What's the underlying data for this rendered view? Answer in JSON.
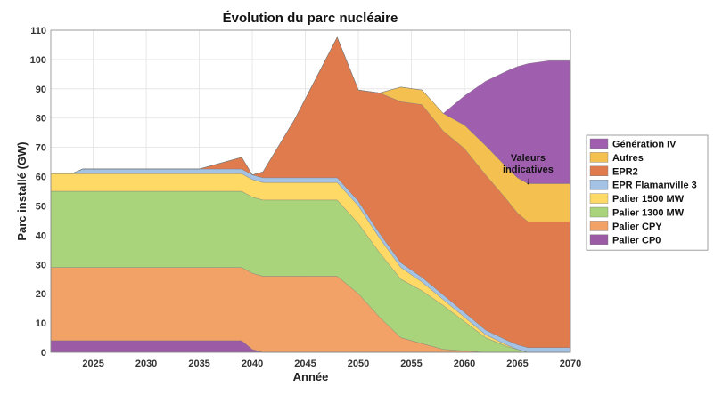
{
  "chart_data": {
    "type": "area",
    "title": "Évolution du parc nucléaire",
    "xlabel": "Année",
    "ylabel": "Parc installé (GW)",
    "xlim": [
      2021,
      2070
    ],
    "ylim": [
      0,
      110
    ],
    "xticks": [
      2025,
      2030,
      2035,
      2040,
      2045,
      2050,
      2055,
      2060,
      2065,
      2070
    ],
    "yticks": [
      0,
      10,
      20,
      30,
      40,
      50,
      60,
      70,
      80,
      90,
      100,
      110
    ],
    "grid": true,
    "legend_position": "right",
    "stacked": true,
    "x": [
      2021,
      2023,
      2024,
      2035,
      2037,
      2039,
      2040,
      2041,
      2044,
      2048,
      2050,
      2052,
      2054,
      2056,
      2058,
      2060,
      2062,
      2064,
      2065,
      2066,
      2068,
      2070
    ],
    "series": [
      {
        "name": "Palier CP0",
        "color": "#9b5ba5",
        "values": [
          4,
          4,
          4,
          4,
          4,
          4,
          1,
          0,
          0,
          0,
          0,
          0,
          0,
          0,
          0,
          0,
          0,
          0,
          0,
          0,
          0,
          0
        ]
      },
      {
        "name": "Palier CPY",
        "color": "#f2a167",
        "values": [
          25,
          25,
          25,
          25,
          25,
          25,
          26,
          26,
          26,
          26,
          20,
          12,
          5,
          3,
          1,
          0.5,
          0,
          0,
          0,
          0,
          0,
          0
        ]
      },
      {
        "name": "Palier 1300 MW",
        "color": "#a9d47b",
        "values": [
          26,
          26,
          26,
          26,
          26,
          26,
          26,
          26,
          26,
          26,
          24,
          22,
          20,
          18,
          15,
          10,
          5,
          2,
          1,
          0,
          0,
          0
        ]
      },
      {
        "name": "Palier 1500 MW",
        "color": "#ffd966",
        "values": [
          6,
          6,
          6,
          6,
          6,
          6,
          6,
          6,
          6,
          6,
          6,
          5,
          4,
          3,
          2,
          1.5,
          1,
          0.5,
          0,
          0,
          0,
          0
        ]
      },
      {
        "name": "EPR Flamanville 3",
        "color": "#a4c2e4",
        "values": [
          0,
          0,
          1.6,
          1.6,
          1.6,
          1.6,
          1.6,
          1.6,
          1.6,
          1.6,
          1.6,
          1.6,
          1.6,
          1.6,
          1.6,
          1.6,
          1.6,
          1.6,
          1.6,
          1.6,
          1.6,
          1.6
        ]
      },
      {
        "name": "EPR2",
        "color": "#e07b4e",
        "values": [
          0,
          0,
          0,
          0,
          2,
          4,
          0,
          2,
          20,
          48,
          38,
          48,
          55,
          59,
          56,
          56,
          53,
          48,
          45,
          43,
          43,
          43
        ]
      },
      {
        "name": "Autres",
        "color": "#f4c04f",
        "values": [
          0,
          0,
          0,
          0,
          0,
          0,
          0,
          0,
          0,
          0,
          0,
          0,
          5,
          5,
          6,
          8,
          10,
          11,
          12,
          13,
          13,
          13
        ]
      },
      {
        "name": "Génération IV",
        "color": "#9f5fae",
        "values": [
          0,
          0,
          0,
          0,
          0,
          0,
          0,
          0,
          0,
          0,
          0,
          0,
          0,
          0,
          0,
          10,
          22,
          33,
          38,
          41,
          42,
          42
        ]
      }
    ],
    "annotations": [
      {
        "text_line1": "Valeurs",
        "text_line2": "indicatives",
        "arrow": "↓",
        "x": 2066,
        "y": 58
      }
    ]
  }
}
